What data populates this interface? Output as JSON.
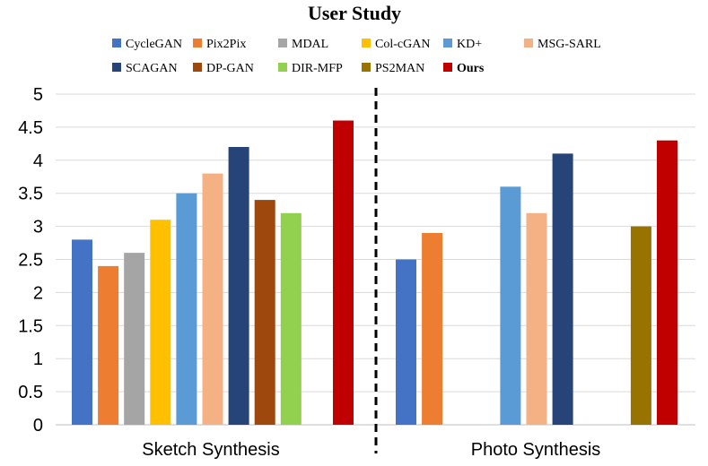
{
  "chart_data": {
    "type": "bar",
    "title": "User Study",
    "xlabel": "",
    "ylabel": "",
    "ylim": [
      0,
      5
    ],
    "yticks": [
      "0",
      "0.5",
      "1",
      "1.5",
      "2",
      "2.5",
      "3",
      "3.5",
      "4",
      "4.5",
      "5"
    ],
    "grid": true,
    "legend_position": "top",
    "categories": [
      "Sketch Synthesis",
      "Photo Synthesis"
    ],
    "series": [
      {
        "name": "CycleGAN",
        "color": "#4472C4",
        "values": [
          2.8,
          2.5
        ]
      },
      {
        "name": "Pix2Pix",
        "color": "#ED7D31",
        "values": [
          2.4,
          2.9
        ]
      },
      {
        "name": "MDAL",
        "color": "#A5A5A5",
        "values": [
          2.6,
          null
        ]
      },
      {
        "name": "Col-cGAN",
        "color": "#FFC000",
        "values": [
          3.1,
          null
        ]
      },
      {
        "name": "KD+",
        "color": "#5B9BD5",
        "values": [
          3.5,
          3.6
        ]
      },
      {
        "name": "MSG-SARL",
        "color": "#F4B183",
        "values": [
          3.8,
          3.2
        ]
      },
      {
        "name": "SCAGAN",
        "color": "#264478",
        "values": [
          4.2,
          4.1
        ]
      },
      {
        "name": "DP-GAN",
        "color": "#9E480E",
        "values": [
          3.4,
          null
        ]
      },
      {
        "name": "DIR-MFP",
        "color": "#92D050",
        "values": [
          3.2,
          null
        ]
      },
      {
        "name": "PS2MAN",
        "color": "#997300",
        "values": [
          null,
          3.0
        ]
      },
      {
        "name": "Ours",
        "color": "#C00000",
        "values": [
          4.6,
          4.3
        ],
        "bold": true
      }
    ]
  }
}
